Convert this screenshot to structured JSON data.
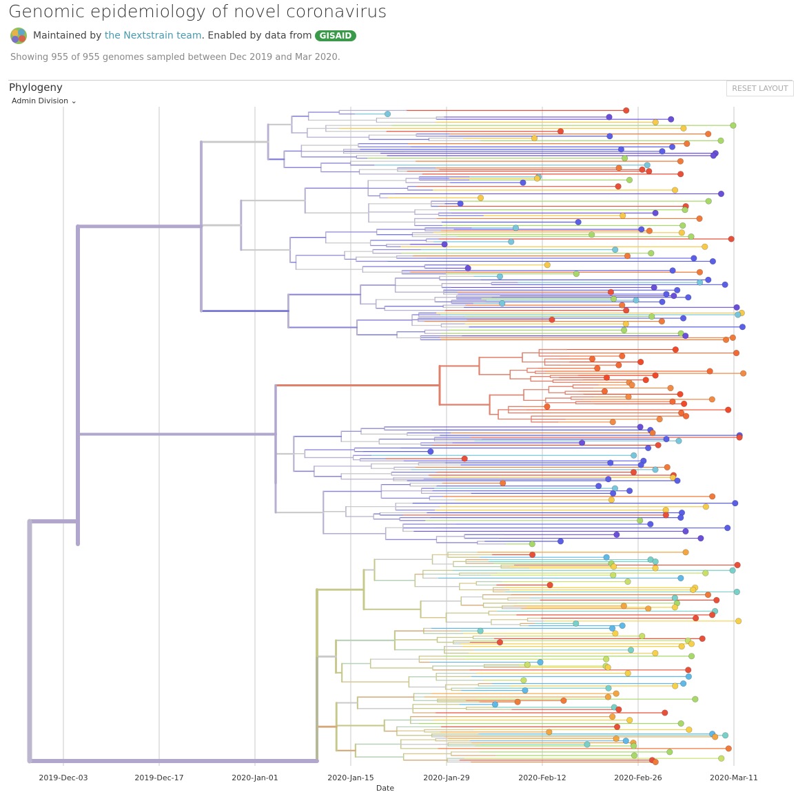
{
  "header": {
    "title": "Genomic epidemiology of novel coronavirus",
    "byline": {
      "prefix": "Maintained by",
      "team_link": "the Nextstrain team",
      "middle": ". Enabled by data from",
      "gisaid": "GISAID"
    },
    "summary": "Showing 955 of 955 genomes sampled between Dec 2019 and Mar 2020."
  },
  "panel": {
    "title": "Phylogeny",
    "reset_button": "RESET LAYOUT",
    "color_by": "Admin Division"
  },
  "axis": {
    "ticks": [
      "2019-Dec-03",
      "2019-Dec-17",
      "2020-Jan-01",
      "2020-Jan-15",
      "2020-Jan-29",
      "2020-Feb-12",
      "2020-Feb-26",
      "2020-Mar-11"
    ],
    "label": "Date"
  }
}
